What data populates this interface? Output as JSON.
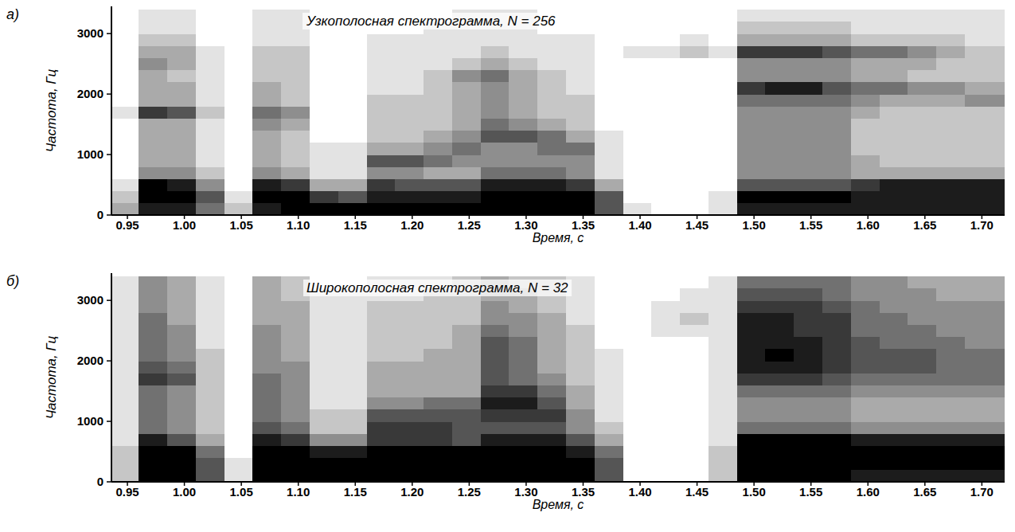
{
  "chart_data": [
    {
      "type": "heatmap",
      "panel_label": "а)",
      "title": "Узкополосная спектрограмма, N = 256",
      "x_label": "Время, с",
      "y_label": "Частота, Гц",
      "grid": false,
      "xlim": [
        0.936,
        1.72
      ],
      "ylim": [
        0,
        3450
      ],
      "xticks": [
        0.95,
        {
          "value": 1,
          "label": "1.00"
        },
        1.05,
        {
          "value": 1.1,
          "label": "1.10"
        },
        1.15,
        {
          "value": 1.2,
          "label": "1.20"
        },
        1.25,
        {
          "value": 1.3,
          "label": "1.30"
        },
        1.35,
        {
          "value": 1.4,
          "label": "1.40"
        },
        1.45,
        {
          "value": 1.5,
          "label": "1.50"
        },
        1.55,
        {
          "value": 1.6,
          "label": "1.60"
        },
        1.65,
        {
          "value": 1.7,
          "label": "1.70"
        }
      ],
      "yticks": [
        0,
        1000,
        2000,
        3000
      ],
      "clim": [
        0,
        9
      ],
      "x": [
        0.9475,
        0.9725,
        0.9975,
        1.0225,
        1.0475,
        1.0725,
        1.0975,
        1.1225,
        1.1475,
        1.1725,
        1.1975,
        1.2225,
        1.2475,
        1.2725,
        1.2975,
        1.3225,
        1.3475,
        1.3725,
        1.3975,
        1.4225,
        1.4475,
        1.4725,
        1.4975,
        1.5225,
        1.5475,
        1.5725,
        1.5975,
        1.6225,
        1.6475,
        1.6725,
        1.6975,
        1.7225
      ],
      "y": [
        100,
        300,
        500,
        700,
        900,
        1100,
        1300,
        1500,
        1700,
        1900,
        2100,
        2300,
        2500,
        2700,
        2900,
        3100,
        3300
      ],
      "cells": [
        [
          3,
          8,
          8,
          5,
          2,
          8,
          9,
          9,
          9,
          9,
          9,
          9,
          9,
          9,
          9,
          9,
          9,
          6,
          1,
          0,
          0,
          1,
          8,
          8,
          8,
          8,
          8,
          8,
          8,
          8,
          8,
          8
        ],
        [
          2,
          9,
          9,
          6,
          1,
          9,
          9,
          7,
          6,
          8,
          8,
          8,
          8,
          9,
          9,
          9,
          9,
          6,
          0,
          0,
          0,
          1,
          9,
          9,
          9,
          9,
          8,
          8,
          8,
          8,
          8,
          8
        ],
        [
          1,
          9,
          8,
          4,
          0,
          8,
          7,
          3,
          3,
          7,
          6,
          6,
          6,
          8,
          8,
          8,
          7,
          3,
          0,
          0,
          0,
          0,
          6,
          6,
          6,
          6,
          7,
          8,
          8,
          8,
          8,
          8
        ],
        [
          0,
          4,
          4,
          2,
          0,
          4,
          3,
          1,
          1,
          4,
          4,
          3,
          3,
          5,
          5,
          5,
          4,
          1,
          0,
          0,
          0,
          0,
          4,
          4,
          4,
          4,
          3,
          3,
          3,
          3,
          3,
          3
        ],
        [
          0,
          3,
          3,
          1,
          0,
          3,
          2,
          1,
          1,
          6,
          6,
          5,
          4,
          4,
          4,
          4,
          4,
          1,
          0,
          0,
          0,
          0,
          4,
          4,
          4,
          4,
          3,
          2,
          2,
          2,
          2,
          2
        ],
        [
          0,
          3,
          3,
          1,
          0,
          3,
          2,
          1,
          1,
          3,
          3,
          4,
          5,
          4,
          4,
          5,
          5,
          1,
          0,
          0,
          0,
          0,
          4,
          4,
          4,
          4,
          2,
          2,
          2,
          2,
          2,
          2
        ],
        [
          0,
          3,
          3,
          1,
          0,
          3,
          2,
          0,
          0,
          2,
          2,
          3,
          4,
          6,
          6,
          5,
          3,
          1,
          0,
          0,
          0,
          0,
          4,
          4,
          4,
          4,
          2,
          2,
          2,
          2,
          2,
          2
        ],
        [
          0,
          3,
          3,
          1,
          0,
          4,
          3,
          0,
          0,
          2,
          2,
          2,
          3,
          5,
          4,
          3,
          2,
          0,
          0,
          0,
          0,
          0,
          4,
          4,
          4,
          4,
          2,
          2,
          2,
          2,
          2,
          2
        ],
        [
          1,
          7,
          6,
          2,
          0,
          5,
          4,
          0,
          0,
          2,
          2,
          2,
          3,
          4,
          3,
          2,
          2,
          0,
          0,
          0,
          0,
          0,
          4,
          4,
          4,
          4,
          3,
          2,
          2,
          2,
          2,
          2
        ],
        [
          0,
          3,
          3,
          1,
          0,
          3,
          2,
          0,
          0,
          2,
          2,
          2,
          3,
          4,
          3,
          2,
          2,
          0,
          0,
          0,
          0,
          0,
          5,
          5,
          5,
          5,
          4,
          3,
          3,
          3,
          4,
          4
        ],
        [
          0,
          3,
          3,
          1,
          0,
          3,
          2,
          0,
          0,
          1,
          1,
          2,
          3,
          4,
          3,
          2,
          1,
          0,
          0,
          0,
          0,
          0,
          7,
          8,
          8,
          6,
          5,
          5,
          4,
          4,
          3,
          3
        ],
        [
          0,
          3,
          2,
          1,
          0,
          2,
          2,
          0,
          0,
          1,
          1,
          2,
          4,
          5,
          3,
          2,
          1,
          0,
          0,
          0,
          0,
          0,
          4,
          4,
          4,
          4,
          3,
          3,
          2,
          2,
          2,
          2
        ],
        [
          0,
          4,
          3,
          1,
          0,
          2,
          2,
          0,
          0,
          1,
          1,
          1,
          2,
          3,
          2,
          1,
          1,
          0,
          0,
          0,
          0,
          0,
          4,
          4,
          4,
          4,
          3,
          3,
          3,
          2,
          2,
          2
        ],
        [
          0,
          3,
          3,
          1,
          0,
          2,
          2,
          0,
          0,
          1,
          1,
          1,
          1,
          2,
          1,
          1,
          1,
          0,
          1,
          1,
          2,
          1,
          7,
          7,
          7,
          6,
          5,
          5,
          4,
          3,
          2,
          2
        ],
        [
          0,
          2,
          2,
          0,
          0,
          1,
          1,
          0,
          0,
          1,
          1,
          1,
          1,
          1,
          1,
          1,
          1,
          0,
          0,
          0,
          1,
          0,
          3,
          3,
          3,
          3,
          2,
          2,
          2,
          2,
          1,
          1
        ],
        [
          0,
          1,
          1,
          0,
          0,
          1,
          1,
          0,
          0,
          0,
          0,
          1,
          1,
          1,
          1,
          0,
          0,
          0,
          0,
          0,
          0,
          0,
          2,
          2,
          2,
          2,
          1,
          1,
          1,
          1,
          1,
          1
        ],
        [
          0,
          1,
          1,
          0,
          0,
          1,
          1,
          0,
          0,
          0,
          0,
          0,
          1,
          1,
          1,
          0,
          0,
          0,
          0,
          0,
          0,
          0,
          1,
          1,
          1,
          1,
          1,
          1,
          1,
          1,
          1,
          1
        ]
      ]
    },
    {
      "type": "heatmap",
      "panel_label": "б)",
      "title": "Широкополосная спектрограмма, N = 32",
      "x_label": "Время, с",
      "y_label": "Частота, Гц",
      "grid": false,
      "xlim": [
        0.936,
        1.72
      ],
      "ylim": [
        0,
        3450
      ],
      "xticks": [
        0.95,
        {
          "value": 1,
          "label": "1.00"
        },
        1.05,
        {
          "value": 1.1,
          "label": "1.10"
        },
        1.15,
        {
          "value": 1.2,
          "label": "1.20"
        },
        1.25,
        {
          "value": 1.3,
          "label": "1.30"
        },
        1.35,
        {
          "value": 1.4,
          "label": "1.40"
        },
        1.45,
        {
          "value": 1.5,
          "label": "1.50"
        },
        1.55,
        {
          "value": 1.6,
          "label": "1.60"
        },
        1.65,
        {
          "value": 1.7,
          "label": "1.70"
        }
      ],
      "yticks": [
        0,
        1000,
        2000,
        3000
      ],
      "clim": [
        0,
        9
      ],
      "x": [
        0.9475,
        0.9725,
        0.9975,
        1.0225,
        1.0475,
        1.0725,
        1.0975,
        1.1225,
        1.1475,
        1.1725,
        1.1975,
        1.2225,
        1.2475,
        1.2725,
        1.2975,
        1.3225,
        1.3475,
        1.3725,
        1.3975,
        1.4225,
        1.4475,
        1.4725,
        1.4975,
        1.5225,
        1.5475,
        1.5725,
        1.5975,
        1.6225,
        1.6475,
        1.6725,
        1.6975,
        1.7225
      ],
      "y": [
        100,
        300,
        500,
        700,
        900,
        1100,
        1300,
        1500,
        1700,
        1900,
        2100,
        2300,
        2500,
        2700,
        2900,
        3100,
        3300
      ],
      "cells": [
        [
          2,
          9,
          9,
          6,
          1,
          9,
          9,
          9,
          9,
          9,
          9,
          9,
          9,
          9,
          9,
          9,
          9,
          6,
          0,
          0,
          0,
          2,
          9,
          9,
          9,
          9,
          8,
          8,
          8,
          8,
          8,
          8
        ],
        [
          2,
          9,
          9,
          6,
          1,
          9,
          9,
          9,
          9,
          9,
          9,
          9,
          9,
          9,
          9,
          9,
          9,
          6,
          0,
          0,
          0,
          2,
          9,
          9,
          9,
          9,
          9,
          9,
          9,
          9,
          9,
          9
        ],
        [
          2,
          9,
          9,
          5,
          0,
          9,
          9,
          8,
          8,
          9,
          9,
          9,
          9,
          9,
          9,
          9,
          8,
          5,
          0,
          0,
          0,
          2,
          9,
          9,
          9,
          9,
          9,
          9,
          9,
          9,
          9,
          9
        ],
        [
          1,
          8,
          6,
          3,
          0,
          8,
          7,
          4,
          4,
          7,
          7,
          7,
          6,
          8,
          8,
          8,
          6,
          3,
          0,
          0,
          0,
          1,
          9,
          9,
          9,
          9,
          8,
          8,
          8,
          8,
          8,
          8
        ],
        [
          1,
          5,
          4,
          2,
          0,
          6,
          5,
          2,
          2,
          7,
          7,
          7,
          6,
          6,
          6,
          6,
          4,
          2,
          0,
          0,
          0,
          1,
          5,
          5,
          5,
          5,
          4,
          4,
          4,
          4,
          4,
          4
        ],
        [
          1,
          5,
          4,
          2,
          0,
          5,
          4,
          2,
          2,
          6,
          6,
          6,
          6,
          7,
          7,
          7,
          4,
          1,
          0,
          0,
          0,
          1,
          4,
          4,
          4,
          4,
          3,
          3,
          3,
          3,
          3,
          3
        ],
        [
          1,
          5,
          4,
          2,
          0,
          5,
          4,
          1,
          1,
          4,
          4,
          5,
          5,
          8,
          8,
          6,
          3,
          1,
          0,
          0,
          0,
          1,
          4,
          4,
          4,
          4,
          3,
          3,
          3,
          3,
          3,
          3
        ],
        [
          1,
          5,
          4,
          2,
          0,
          5,
          4,
          1,
          1,
          3,
          3,
          3,
          3,
          7,
          7,
          5,
          3,
          1,
          0,
          0,
          0,
          1,
          5,
          5,
          5,
          5,
          4,
          4,
          4,
          4,
          4,
          4
        ],
        [
          1,
          7,
          6,
          2,
          0,
          5,
          4,
          1,
          1,
          3,
          3,
          3,
          3,
          6,
          5,
          4,
          2,
          1,
          0,
          0,
          0,
          1,
          7,
          7,
          7,
          6,
          5,
          5,
          5,
          5,
          5,
          5
        ],
        [
          1,
          6,
          5,
          2,
          0,
          4,
          4,
          1,
          1,
          3,
          3,
          3,
          3,
          6,
          5,
          3,
          2,
          1,
          0,
          0,
          0,
          1,
          8,
          8,
          8,
          7,
          6,
          6,
          6,
          5,
          5,
          5
        ],
        [
          1,
          5,
          4,
          2,
          0,
          4,
          3,
          1,
          1,
          2,
          2,
          3,
          3,
          6,
          5,
          3,
          2,
          1,
          0,
          0,
          0,
          1,
          8,
          9,
          8,
          7,
          6,
          6,
          6,
          5,
          5,
          5
        ],
        [
          1,
          5,
          4,
          1,
          0,
          4,
          3,
          1,
          1,
          2,
          2,
          2,
          3,
          6,
          5,
          3,
          2,
          0,
          0,
          0,
          0,
          1,
          8,
          8,
          8,
          7,
          6,
          5,
          5,
          5,
          4,
          4
        ],
        [
          1,
          5,
          4,
          1,
          0,
          4,
          3,
          1,
          1,
          2,
          2,
          2,
          3,
          5,
          4,
          3,
          2,
          0,
          0,
          1,
          1,
          1,
          8,
          8,
          7,
          7,
          5,
          5,
          5,
          4,
          4,
          4
        ],
        [
          1,
          5,
          3,
          1,
          0,
          3,
          3,
          1,
          1,
          2,
          2,
          2,
          2,
          4,
          4,
          3,
          1,
          0,
          0,
          1,
          2,
          1,
          8,
          8,
          7,
          7,
          5,
          5,
          4,
          4,
          4,
          4
        ],
        [
          1,
          4,
          3,
          1,
          0,
          3,
          3,
          1,
          1,
          2,
          2,
          2,
          2,
          4,
          3,
          2,
          1,
          0,
          0,
          1,
          1,
          1,
          7,
          7,
          7,
          6,
          5,
          4,
          4,
          4,
          4,
          4
        ],
        [
          1,
          4,
          3,
          1,
          0,
          3,
          2,
          1,
          1,
          1,
          1,
          2,
          2,
          3,
          3,
          2,
          1,
          0,
          0,
          0,
          1,
          1,
          6,
          6,
          6,
          5,
          4,
          4,
          4,
          3,
          3,
          3
        ],
        [
          1,
          4,
          3,
          1,
          0,
          3,
          2,
          0,
          0,
          1,
          1,
          1,
          2,
          3,
          2,
          2,
          1,
          0,
          0,
          0,
          0,
          1,
          5,
          5,
          5,
          5,
          4,
          4,
          3,
          3,
          3,
          3
        ]
      ]
    }
  ]
}
